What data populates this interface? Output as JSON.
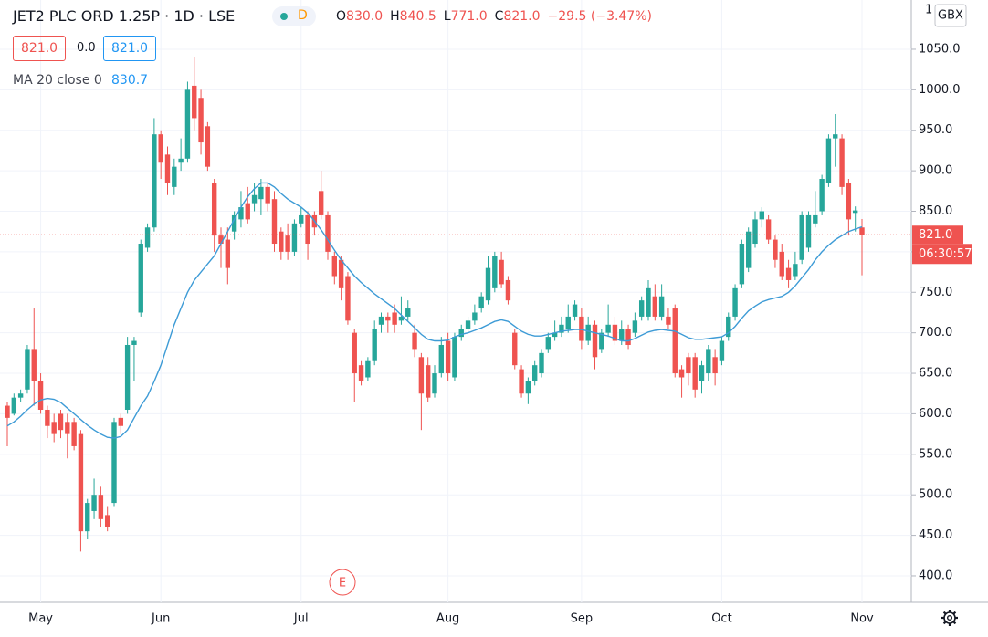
{
  "header": {
    "title": "JET2 PLC ORD 1.25P · 1D · LSE",
    "marker": "D",
    "ohlc": [
      {
        "label": "O",
        "value": "830.0"
      },
      {
        "label": "H",
        "value": "840.5"
      },
      {
        "label": "L",
        "value": "771.0"
      },
      {
        "label": "C",
        "value": "821.0"
      }
    ],
    "change": "−29.5 (−3.47%)"
  },
  "quote": {
    "bid": "821.0",
    "spread": "0.0",
    "ask": "821.0"
  },
  "indicator": {
    "name": "MA 20 close 0",
    "value": "830.7"
  },
  "chart_data": {
    "type": "candlestick",
    "categories": [
      null,
      null,
      null,
      null,
      null,
      "May",
      null,
      null,
      null,
      null,
      null,
      null,
      null,
      null,
      null,
      null,
      null,
      null,
      null,
      null,
      null,
      null,
      null,
      "Jun",
      null,
      null,
      null,
      null,
      null,
      null,
      null,
      null,
      null,
      null,
      null,
      null,
      null,
      null,
      null,
      null,
      null,
      null,
      null,
      null,
      "Jul",
      null,
      null,
      null,
      null,
      null,
      null,
      null,
      null,
      null,
      null,
      null,
      null,
      null,
      null,
      null,
      null,
      null,
      null,
      null,
      null,
      null,
      "Aug",
      null,
      null,
      null,
      null,
      null,
      null,
      null,
      null,
      null,
      null,
      null,
      null,
      null,
      null,
      null,
      null,
      null,
      null,
      null,
      "Sep",
      null,
      null,
      null,
      null,
      null,
      null,
      null,
      null,
      null,
      null,
      null,
      null,
      null,
      null,
      null,
      null,
      null,
      null,
      null,
      null,
      "Oct",
      null,
      null,
      null,
      null,
      null,
      null,
      null,
      null,
      null,
      null,
      null,
      null,
      null,
      null,
      null,
      null,
      null,
      null,
      null,
      null,
      "Nov"
    ],
    "open": [
      610,
      600,
      620,
      630,
      680,
      640,
      605,
      590,
      600,
      590,
      590,
      575,
      455,
      480,
      500,
      475,
      490,
      595,
      605,
      685,
      725,
      805,
      830,
      945,
      920,
      880,
      910,
      915,
      1005,
      990,
      955,
      885,
      820,
      815,
      825,
      840,
      860,
      860,
      865,
      880,
      865,
      825,
      820,
      800,
      835,
      845,
      845,
      875,
      845,
      795,
      790,
      770,
      700,
      660,
      645,
      665,
      710,
      720,
      725,
      715,
      720,
      700,
      670,
      660,
      625,
      650,
      690,
      645,
      695,
      705,
      715,
      730,
      740,
      755,
      790,
      765,
      700,
      655,
      625,
      640,
      650,
      680,
      695,
      700,
      705,
      720,
      720,
      690,
      710,
      680,
      700,
      710,
      690,
      705,
      700,
      720,
      720,
      745,
      720,
      720,
      730,
      655,
      670,
      670,
      640,
      650,
      670,
      665,
      695,
      720,
      760,
      780,
      810,
      840,
      840,
      815,
      800,
      780,
      770,
      790,
      805,
      835,
      850,
      885,
      940,
      940,
      885,
      848,
      830
    ],
    "high": [
      615,
      625,
      630,
      685,
      730,
      650,
      610,
      600,
      605,
      600,
      595,
      580,
      495,
      520,
      510,
      485,
      595,
      600,
      695,
      695,
      815,
      835,
      965,
      950,
      930,
      915,
      940,
      1010,
      1040,
      1000,
      960,
      890,
      830,
      830,
      850,
      875,
      880,
      885,
      890,
      885,
      875,
      830,
      835,
      840,
      855,
      850,
      850,
      900,
      850,
      800,
      795,
      775,
      705,
      665,
      670,
      715,
      725,
      725,
      735,
      745,
      740,
      710,
      675,
      670,
      660,
      695,
      700,
      700,
      710,
      720,
      735,
      750,
      795,
      800,
      800,
      770,
      705,
      660,
      645,
      665,
      680,
      700,
      715,
      720,
      735,
      740,
      730,
      720,
      715,
      705,
      735,
      720,
      715,
      710,
      725,
      745,
      765,
      760,
      760,
      730,
      735,
      660,
      675,
      675,
      665,
      685,
      680,
      695,
      725,
      760,
      815,
      830,
      850,
      855,
      845,
      820,
      810,
      790,
      800,
      850,
      850,
      875,
      895,
      945,
      970,
      945,
      890,
      856,
      840.5
    ],
    "low": [
      560,
      598,
      615,
      625,
      610,
      600,
      570,
      565,
      570,
      545,
      555,
      430,
      445,
      470,
      460,
      455,
      485,
      575,
      600,
      640,
      720,
      800,
      825,
      890,
      870,
      870,
      900,
      910,
      950,
      920,
      900,
      800,
      780,
      760,
      815,
      830,
      835,
      850,
      845,
      850,
      800,
      790,
      790,
      795,
      830,
      790,
      820,
      840,
      790,
      760,
      740,
      710,
      615,
      635,
      640,
      660,
      700,
      700,
      700,
      710,
      715,
      670,
      580,
      615,
      620,
      645,
      640,
      640,
      690,
      700,
      710,
      725,
      735,
      750,
      755,
      735,
      655,
      620,
      612,
      635,
      645,
      675,
      690,
      695,
      700,
      715,
      680,
      685,
      655,
      675,
      695,
      685,
      685,
      680,
      695,
      715,
      715,
      715,
      715,
      705,
      645,
      620,
      635,
      620,
      625,
      640,
      635,
      660,
      690,
      715,
      755,
      775,
      805,
      830,
      810,
      780,
      765,
      755,
      765,
      785,
      800,
      830,
      845,
      880,
      905,
      870,
      820,
      825,
      771
    ],
    "close": [
      595,
      620,
      625,
      680,
      640,
      605,
      585,
      575,
      580,
      575,
      560,
      455,
      490,
      500,
      470,
      460,
      590,
      585,
      685,
      690,
      810,
      830,
      945,
      910,
      885,
      905,
      915,
      1000,
      965,
      935,
      905,
      820,
      810,
      780,
      845,
      855,
      840,
      870,
      880,
      860,
      810,
      800,
      800,
      835,
      845,
      810,
      830,
      845,
      800,
      770,
      755,
      715,
      650,
      640,
      665,
      705,
      720,
      715,
      710,
      720,
      730,
      680,
      625,
      620,
      650,
      685,
      650,
      695,
      705,
      715,
      725,
      745,
      780,
      795,
      760,
      740,
      660,
      625,
      640,
      660,
      675,
      695,
      700,
      710,
      720,
      735,
      690,
      710,
      670,
      700,
      710,
      690,
      705,
      685,
      715,
      740,
      755,
      720,
      745,
      710,
      650,
      645,
      650,
      630,
      660,
      680,
      650,
      690,
      720,
      755,
      810,
      825,
      840,
      850,
      815,
      790,
      770,
      765,
      785,
      845,
      845,
      845,
      890,
      940,
      945,
      880,
      840,
      851,
      821
    ],
    "up_color": "#26a69a",
    "down_color": "#ef5350",
    "ma": {
      "color": "#3d9bd6",
      "values": [
        585,
        590,
        597,
        605,
        612,
        617,
        619,
        618,
        614,
        607,
        600,
        593,
        586,
        580,
        575,
        571,
        570,
        572,
        580,
        595,
        610,
        622,
        640,
        660,
        685,
        710,
        730,
        750,
        765,
        775,
        785,
        795,
        810,
        825,
        840,
        855,
        868,
        878,
        885,
        885,
        880,
        872,
        865,
        860,
        855,
        848,
        838,
        827,
        815,
        802,
        790,
        780,
        770,
        762,
        755,
        748,
        742,
        736,
        730,
        722,
        714,
        706,
        698,
        692,
        690,
        690,
        691,
        695,
        698,
        700,
        703,
        706,
        710,
        714,
        716,
        714,
        708,
        702,
        698,
        696,
        696,
        698,
        700,
        702,
        703,
        704,
        704,
        702,
        700,
        698,
        696,
        693,
        690,
        690,
        693,
        697,
        701,
        703,
        704,
        703,
        702,
        698,
        694,
        692,
        692,
        693,
        694,
        695,
        700,
        708,
        718,
        727,
        733,
        738,
        741,
        743,
        745,
        750,
        758,
        768,
        778,
        790,
        800,
        808,
        815,
        820,
        825,
        828,
        830.7
      ]
    },
    "ylim": [
      367.3,
      1110.8
    ],
    "yticks": [
      {
        "value": 400,
        "label": "400.0"
      },
      {
        "value": 450,
        "label": "450.0"
      },
      {
        "value": 500,
        "label": "500.0"
      },
      {
        "value": 550,
        "label": "550.0"
      },
      {
        "value": 600,
        "label": "600.0"
      },
      {
        "value": 650,
        "label": "650.0"
      },
      {
        "value": 700,
        "label": "700.0"
      },
      {
        "value": 750,
        "label": "750.0"
      },
      {
        "value": 800,
        "label": "800.0"
      },
      {
        "value": 850,
        "label": "850.0"
      },
      {
        "value": 900,
        "label": "900.0"
      },
      {
        "value": 950,
        "label": "950.0"
      },
      {
        "value": 1000,
        "label": "1000.0"
      },
      {
        "value": 1050,
        "label": "1050.0"
      }
    ],
    "last_price": {
      "value": 821,
      "label": "821.0",
      "color": "#ef5350"
    },
    "countdown": "06:30:57",
    "currency": "GBX",
    "scale_label": "1",
    "event_marker": "E"
  }
}
